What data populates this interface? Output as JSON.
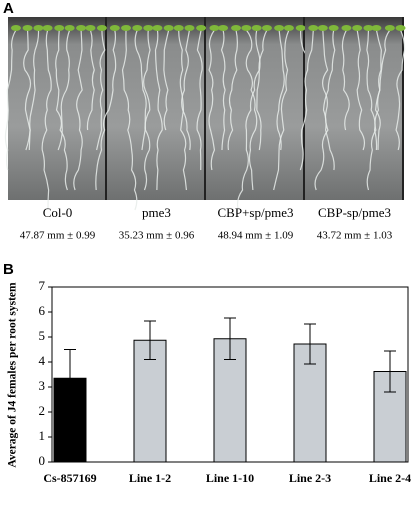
{
  "panel_a": {
    "label": "A",
    "images": [
      {
        "name": "Col-0",
        "measurement": "47.87 mm ± 0.99"
      },
      {
        "name": "pme3",
        "measurement": "35.23 mm ± 0.96"
      },
      {
        "name": "CBP+sp/pme3",
        "measurement": "48.94 mm ± 1.09"
      },
      {
        "name": "CBP-sp/pme3",
        "measurement": "43.72 mm ± 1.03"
      }
    ]
  },
  "chart_data": {
    "type": "bar",
    "panel_label": "B",
    "y_label": "Average of J4 females per root system",
    "categories": [
      "Cs-857169",
      "Line 1-2",
      "Line 1-10",
      "Line 2-3",
      "Line 2-4"
    ],
    "values": [
      3.35,
      4.87,
      4.93,
      4.72,
      3.62
    ],
    "errors": [
      1.15,
      0.77,
      0.83,
      0.8,
      0.82
    ],
    "colors": [
      "#000000",
      "#c9ced3",
      "#c9ced3",
      "#c9ced3",
      "#c9ced3"
    ],
    "ylim": [
      0,
      7
    ],
    "yticks": [
      0,
      1,
      2,
      3,
      4,
      5,
      6,
      7
    ]
  }
}
